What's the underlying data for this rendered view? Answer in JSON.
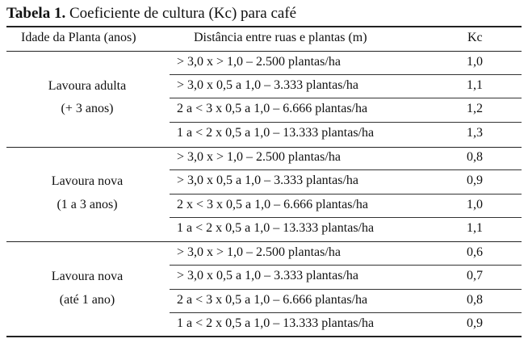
{
  "title": {
    "label": "Tabela 1.",
    "text": "Coeficiente de cultura (Kc) para café"
  },
  "table": {
    "headers": {
      "age": "Idade da Planta (anos)",
      "distance": "Distância entre ruas e plantas (m)",
      "kc": "Kc"
    },
    "groups": [
      {
        "name_line1": "Lavoura adulta",
        "name_line2": "(+ 3 anos)",
        "rows": [
          {
            "distance": "> 3,0 x > 1,0 – 2.500 plantas/ha",
            "kc": "1,0"
          },
          {
            "distance": "> 3,0 x 0,5 a 1,0 – 3.333 plantas/ha",
            "kc": "1,1"
          },
          {
            "distance": "2 a < 3 x 0,5 a 1,0 – 6.666 plantas/ha",
            "kc": "1,2"
          },
          {
            "distance": "1 a < 2 x 0,5 a 1,0 – 13.333 plantas/ha",
            "kc": "1,3"
          }
        ]
      },
      {
        "name_line1": "Lavoura nova",
        "name_line2": "(1 a 3 anos)",
        "rows": [
          {
            "distance": "> 3,0 x > 1,0 – 2.500 plantas/ha",
            "kc": "0,8"
          },
          {
            "distance": "> 3,0 x 0,5 a 1,0 – 3.333 plantas/ha",
            "kc": "0,9"
          },
          {
            "distance": "2 x < 3 x 0,5 a 1,0 – 6.666 plantas/ha",
            "kc": "1,0"
          },
          {
            "distance": "1 a < 2 x 0,5 a 1,0 – 13.333 plantas/ha",
            "kc": "1,1"
          }
        ]
      },
      {
        "name_line1": "Lavoura nova",
        "name_line2": "(até 1 ano)",
        "rows": [
          {
            "distance": "> 3,0 x > 1,0 – 2.500 plantas/ha",
            "kc": "0,6"
          },
          {
            "distance": "> 3,0 x 0,5 a 1,0 – 3.333 plantas/ha",
            "kc": "0,7"
          },
          {
            "distance": "2 a < 3 x 0,5 a 1,0 – 6.666 plantas/ha",
            "kc": "0,8"
          },
          {
            "distance": "1 a < 2 x 0,5 a 1,0 – 13.333 plantas/ha",
            "kc": "0,9"
          }
        ]
      }
    ]
  }
}
